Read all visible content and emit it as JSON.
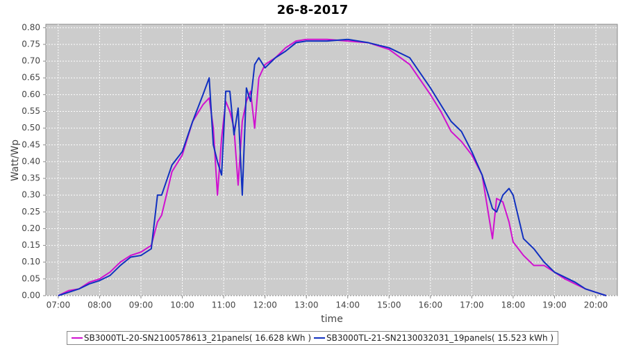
{
  "chart_data": {
    "type": "line",
    "title": "26-8-2017",
    "x_label": "time",
    "y_label": "Watt/Wp",
    "x": [
      7.0,
      7.25,
      7.5,
      7.75,
      8.0,
      8.25,
      8.5,
      8.75,
      9.0,
      9.25,
      9.4,
      9.5,
      9.75,
      10.0,
      10.25,
      10.5,
      10.65,
      10.75,
      10.85,
      10.95,
      11.05,
      11.15,
      11.25,
      11.35,
      11.45,
      11.55,
      11.65,
      11.75,
      11.85,
      12.0,
      12.25,
      12.5,
      12.75,
      13.0,
      13.5,
      14.0,
      14.5,
      15.0,
      15.5,
      16.0,
      16.25,
      16.5,
      16.75,
      17.0,
      17.25,
      17.5,
      17.6,
      17.75,
      17.9,
      18.0,
      18.25,
      18.5,
      18.75,
      19.0,
      19.25,
      19.5,
      19.75,
      20.0,
      20.25
    ],
    "series": [
      {
        "name": "SB3000TL-20-SN2100578613_21panels( 16.628 kWh )",
        "color": "#d010d0",
        "values": [
          0.0,
          0.015,
          0.02,
          0.04,
          0.05,
          0.07,
          0.1,
          0.12,
          0.13,
          0.15,
          0.22,
          0.24,
          0.37,
          0.42,
          0.52,
          0.57,
          0.59,
          0.5,
          0.3,
          0.47,
          0.58,
          0.55,
          0.5,
          0.33,
          0.52,
          0.58,
          0.61,
          0.5,
          0.65,
          0.69,
          0.71,
          0.74,
          0.76,
          0.765,
          0.765,
          0.76,
          0.755,
          0.735,
          0.69,
          0.6,
          0.55,
          0.49,
          0.46,
          0.42,
          0.36,
          0.17,
          0.29,
          0.28,
          0.22,
          0.16,
          0.12,
          0.09,
          0.09,
          0.07,
          0.05,
          0.035,
          0.02,
          0.01,
          0.0
        ]
      },
      {
        "name": "SB3000TL-21-SN2130032031_19panels( 15.523 kWh )",
        "color": "#1030c0",
        "values": [
          0.0,
          0.01,
          0.02,
          0.035,
          0.045,
          0.06,
          0.09,
          0.115,
          0.12,
          0.14,
          0.3,
          0.3,
          0.39,
          0.43,
          0.52,
          0.6,
          0.65,
          0.45,
          0.4,
          0.36,
          0.61,
          0.61,
          0.48,
          0.56,
          0.3,
          0.62,
          0.58,
          0.69,
          0.71,
          0.68,
          0.71,
          0.73,
          0.755,
          0.76,
          0.76,
          0.765,
          0.755,
          0.74,
          0.71,
          0.62,
          0.57,
          0.52,
          0.49,
          0.43,
          0.36,
          0.26,
          0.25,
          0.3,
          0.32,
          0.3,
          0.17,
          0.14,
          0.1,
          0.07,
          0.055,
          0.04,
          0.02,
          0.01,
          0.0
        ]
      }
    ],
    "xlim": [
      6.7,
      20.52
    ],
    "ylim": [
      0,
      0.81
    ],
    "xticks": [
      {
        "value": 7,
        "label": "07:00"
      },
      {
        "value": 8,
        "label": "08:00"
      },
      {
        "value": 9,
        "label": "09:00"
      },
      {
        "value": 10,
        "label": "10:00"
      },
      {
        "value": 11,
        "label": "11:00"
      },
      {
        "value": 12,
        "label": "12:00"
      },
      {
        "value": 13,
        "label": "13:00"
      },
      {
        "value": 14,
        "label": "14:00"
      },
      {
        "value": 15,
        "label": "15:00"
      },
      {
        "value": 16,
        "label": "16:00"
      },
      {
        "value": 17,
        "label": "17:00"
      },
      {
        "value": 18,
        "label": "18:00"
      },
      {
        "value": 19,
        "label": "19:00"
      },
      {
        "value": 20,
        "label": "20:00"
      }
    ],
    "yticks": [
      {
        "value": 0,
        "label": "0.00"
      },
      {
        "value": 0.05,
        "label": "0.05"
      },
      {
        "value": 0.1,
        "label": "0.10"
      },
      {
        "value": 0.15,
        "label": "0.15"
      },
      {
        "value": 0.2,
        "label": "0.20"
      },
      {
        "value": 0.25,
        "label": "0.25"
      },
      {
        "value": 0.3,
        "label": "0.30"
      },
      {
        "value": 0.35,
        "label": "0.35"
      },
      {
        "value": 0.4,
        "label": "0.40"
      },
      {
        "value": 0.45,
        "label": "0.45"
      },
      {
        "value": 0.5,
        "label": "0.50"
      },
      {
        "value": 0.55,
        "label": "0.55"
      },
      {
        "value": 0.6,
        "label": "0.60"
      },
      {
        "value": 0.65,
        "label": "0.65"
      },
      {
        "value": 0.7,
        "label": "0.70"
      },
      {
        "value": 0.75,
        "label": "0.75"
      },
      {
        "value": 0.8,
        "label": "0.80"
      }
    ],
    "grid": true,
    "legend": "bottom"
  }
}
